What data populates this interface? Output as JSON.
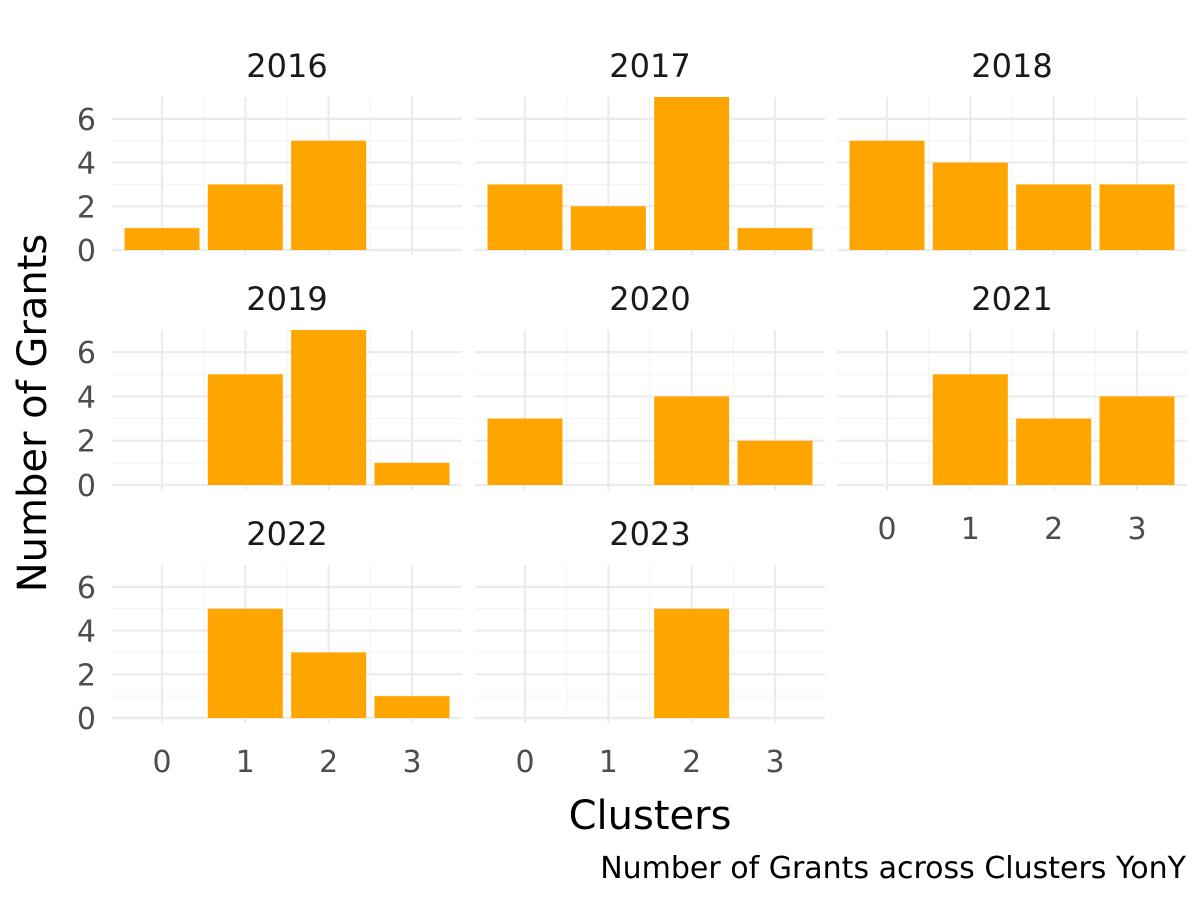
{
  "chart_data": {
    "type": "bar",
    "facet": "year",
    "xlabel": "Clusters",
    "ylabel": "Number of Grants",
    "caption": "Number of Grants across Clusters YonY",
    "categories": [
      "0",
      "1",
      "2",
      "3"
    ],
    "y_ticks": [
      "0",
      "2",
      "4",
      "6"
    ],
    "ylim": [
      0,
      7
    ],
    "grid": true,
    "bar_color": "#FFA500",
    "panels": [
      {
        "label": "2016",
        "values": [
          1,
          3,
          5,
          0
        ]
      },
      {
        "label": "2017",
        "values": [
          3,
          2,
          7,
          1
        ]
      },
      {
        "label": "2018",
        "values": [
          5,
          4,
          3,
          3
        ]
      },
      {
        "label": "2019",
        "values": [
          0,
          5,
          7,
          1
        ]
      },
      {
        "label": "2020",
        "values": [
          3,
          0,
          4,
          2
        ]
      },
      {
        "label": "2021",
        "values": [
          0,
          5,
          3,
          4
        ]
      },
      {
        "label": "2022",
        "values": [
          0,
          5,
          3,
          1
        ]
      },
      {
        "label": "2023",
        "values": [
          0,
          0,
          5,
          0
        ]
      }
    ]
  }
}
